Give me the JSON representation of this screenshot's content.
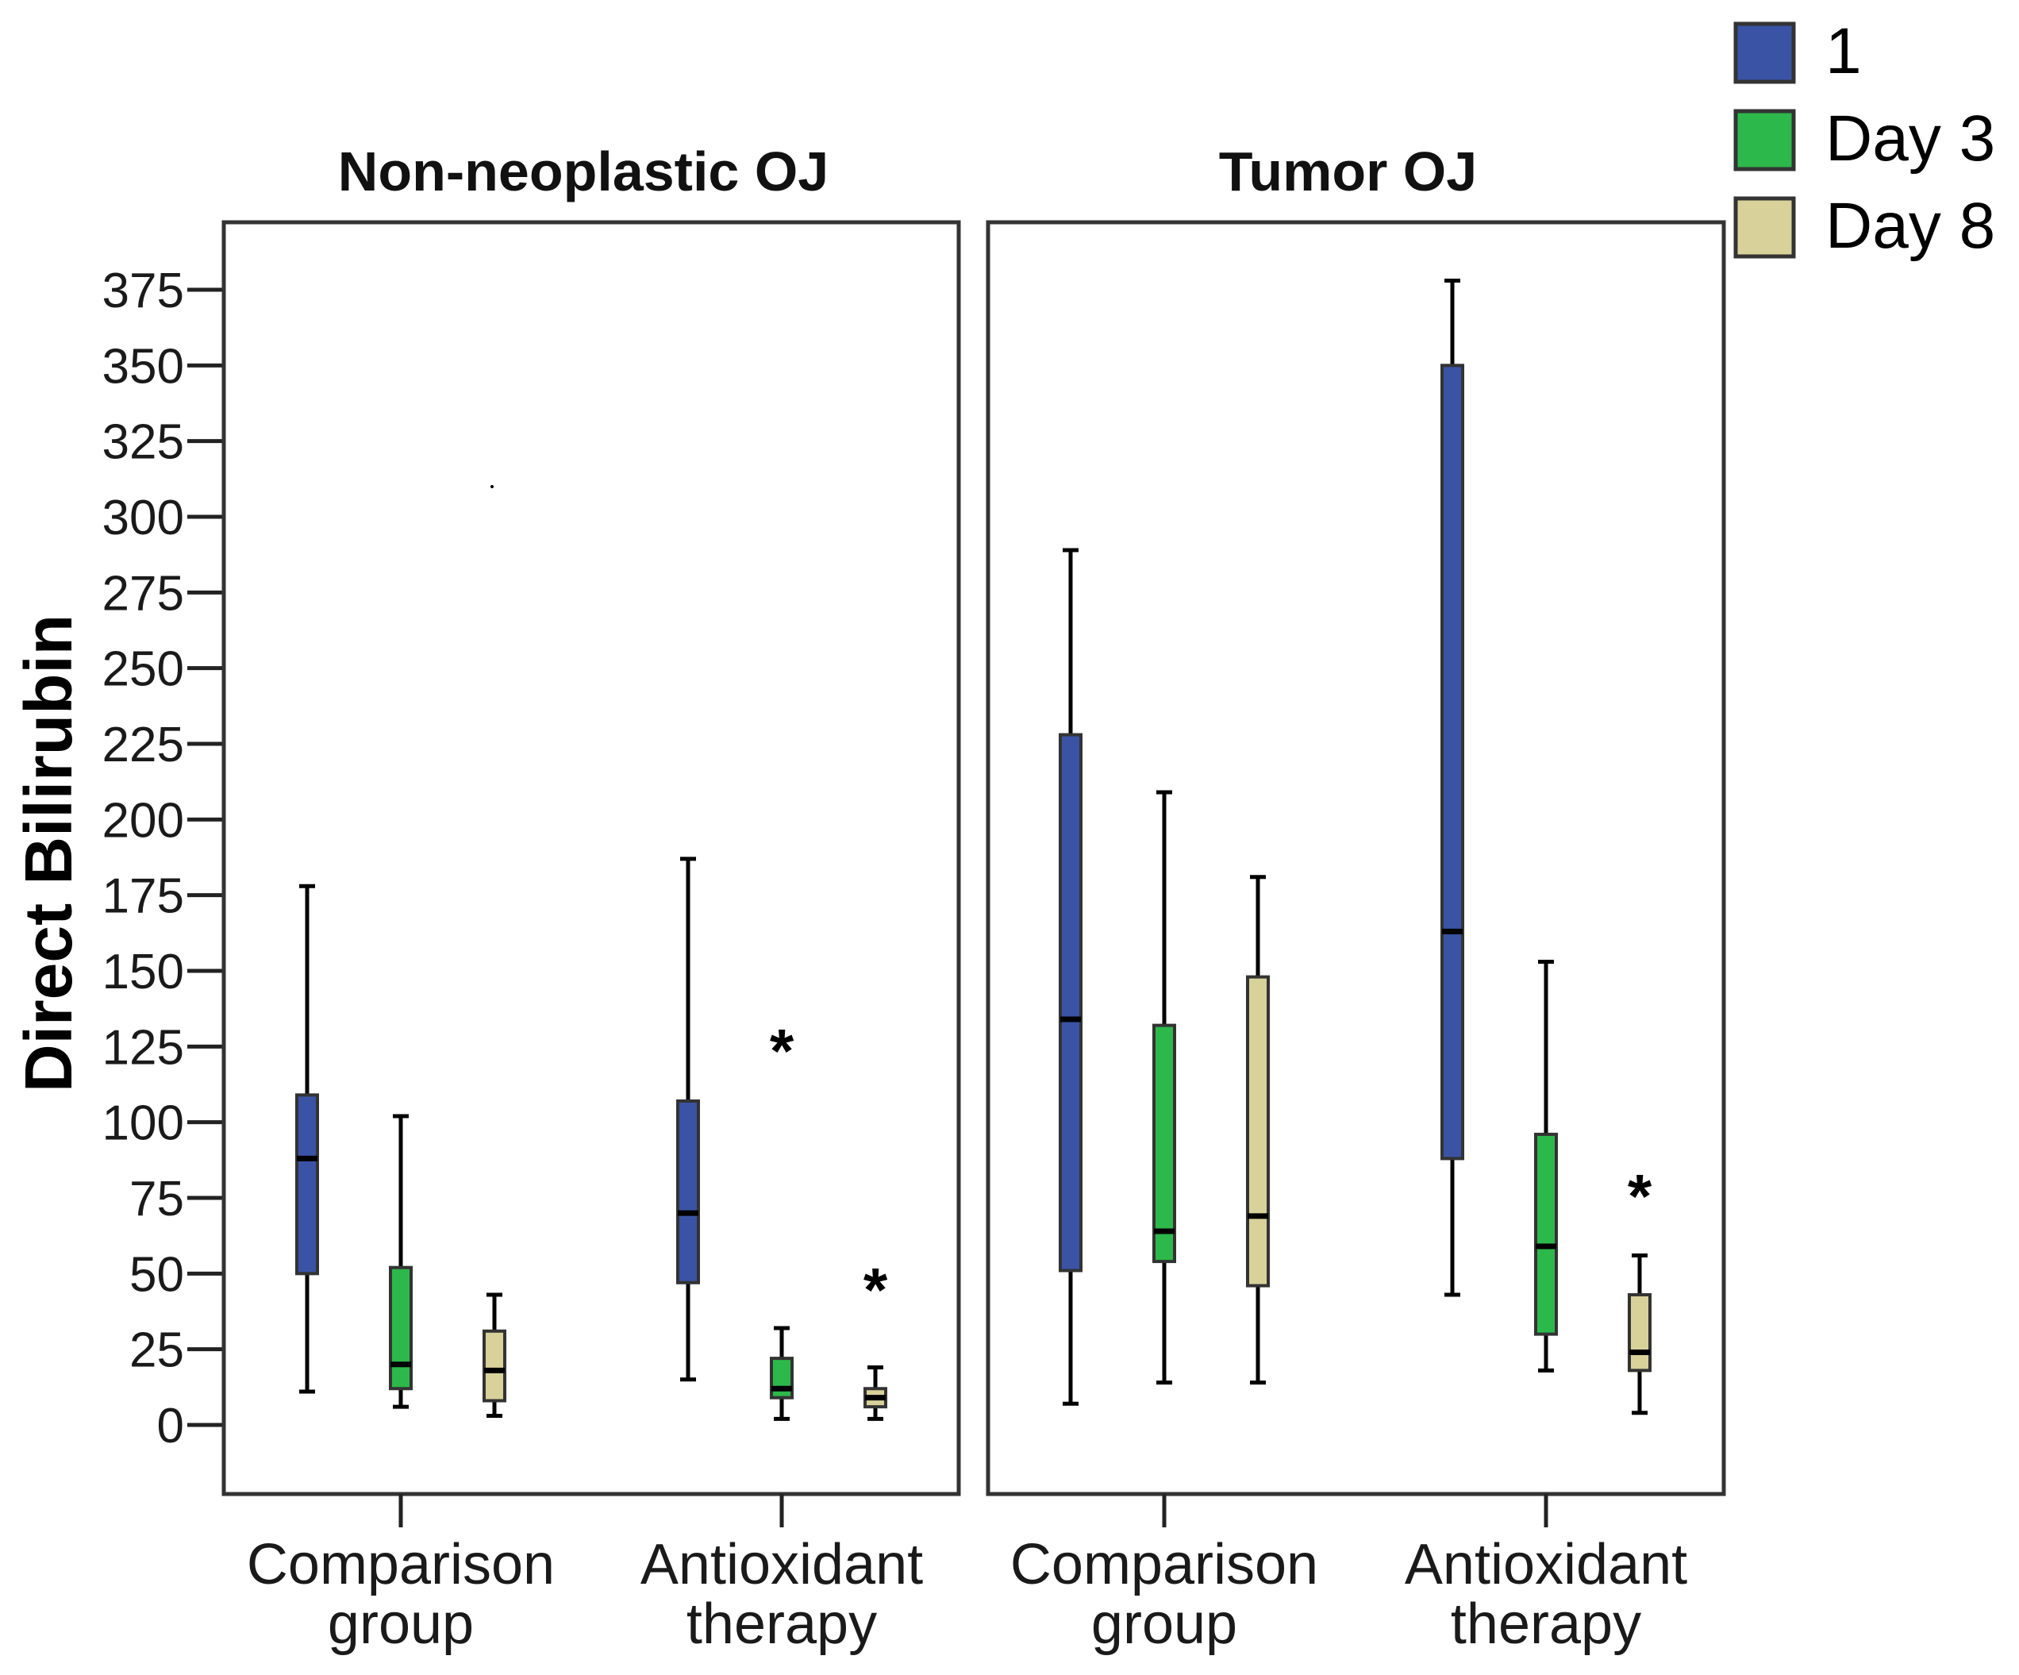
{
  "chart_data": {
    "type": "box",
    "ylabel": "Direct Bilirubin",
    "ylim": [
      -25,
      400
    ],
    "yticks": [
      0,
      25,
      50,
      75,
      100,
      125,
      150,
      175,
      200,
      225,
      250,
      275,
      300,
      325,
      350,
      375
    ],
    "legend": {
      "placement": "top-right",
      "entries": [
        {
          "label": "1",
          "color": "#3a53a4"
        },
        {
          "label": "Day 3",
          "color": "#2db84b"
        },
        {
          "label": "Day 8",
          "color": "#d8d19a"
        }
      ]
    },
    "panels": [
      {
        "title": "Non-neoplastic OJ",
        "groups": [
          {
            "category": [
              "Comparison",
              "group"
            ],
            "boxes": [
              {
                "series": "1",
                "min": 11,
                "q1": 50,
                "median": 88,
                "q3": 109,
                "max": 178
              },
              {
                "series": "Day 3",
                "min": 6,
                "q1": 12,
                "median": 20,
                "q3": 52,
                "max": 102
              },
              {
                "series": "Day 8",
                "min": 3,
                "q1": 8,
                "median": 18,
                "q3": 31,
                "max": 43
              }
            ]
          },
          {
            "category": [
              "Antioxidant",
              "therapy"
            ],
            "boxes": [
              {
                "series": "1",
                "min": 15,
                "q1": 47,
                "median": 70,
                "q3": 107,
                "max": 187
              },
              {
                "series": "Day 3",
                "min": 2,
                "q1": 9,
                "median": 12,
                "q3": 22,
                "max": 32,
                "outliers": [
                  125
                ]
              },
              {
                "series": "Day 8",
                "min": 2,
                "q1": 6,
                "median": 9,
                "q3": 12,
                "max": 19,
                "outliers": [
                  46
                ]
              }
            ]
          }
        ]
      },
      {
        "title": "Tumor OJ",
        "groups": [
          {
            "category": [
              "Comparison",
              "group"
            ],
            "boxes": [
              {
                "series": "1",
                "min": 7,
                "q1": 51,
                "median": 134,
                "q3": 228,
                "max": 289
              },
              {
                "series": "Day 3",
                "min": 14,
                "q1": 54,
                "median": 64,
                "q3": 132,
                "max": 209
              },
              {
                "series": "Day 8",
                "min": 14,
                "q1": 46,
                "median": 69,
                "q3": 148,
                "max": 181
              }
            ]
          },
          {
            "category": [
              "Antioxidant",
              "therapy"
            ],
            "boxes": [
              {
                "series": "1",
                "min": 43,
                "q1": 88,
                "median": 163,
                "q3": 350,
                "max": 378
              },
              {
                "series": "Day 3",
                "min": 18,
                "q1": 30,
                "median": 59,
                "q3": 96,
                "max": 153
              },
              {
                "series": "Day 8",
                "min": 4,
                "q1": 18,
                "median": 24,
                "q3": 43,
                "max": 56,
                "outliers": [
                  77
                ]
              }
            ]
          }
        ]
      }
    ]
  }
}
